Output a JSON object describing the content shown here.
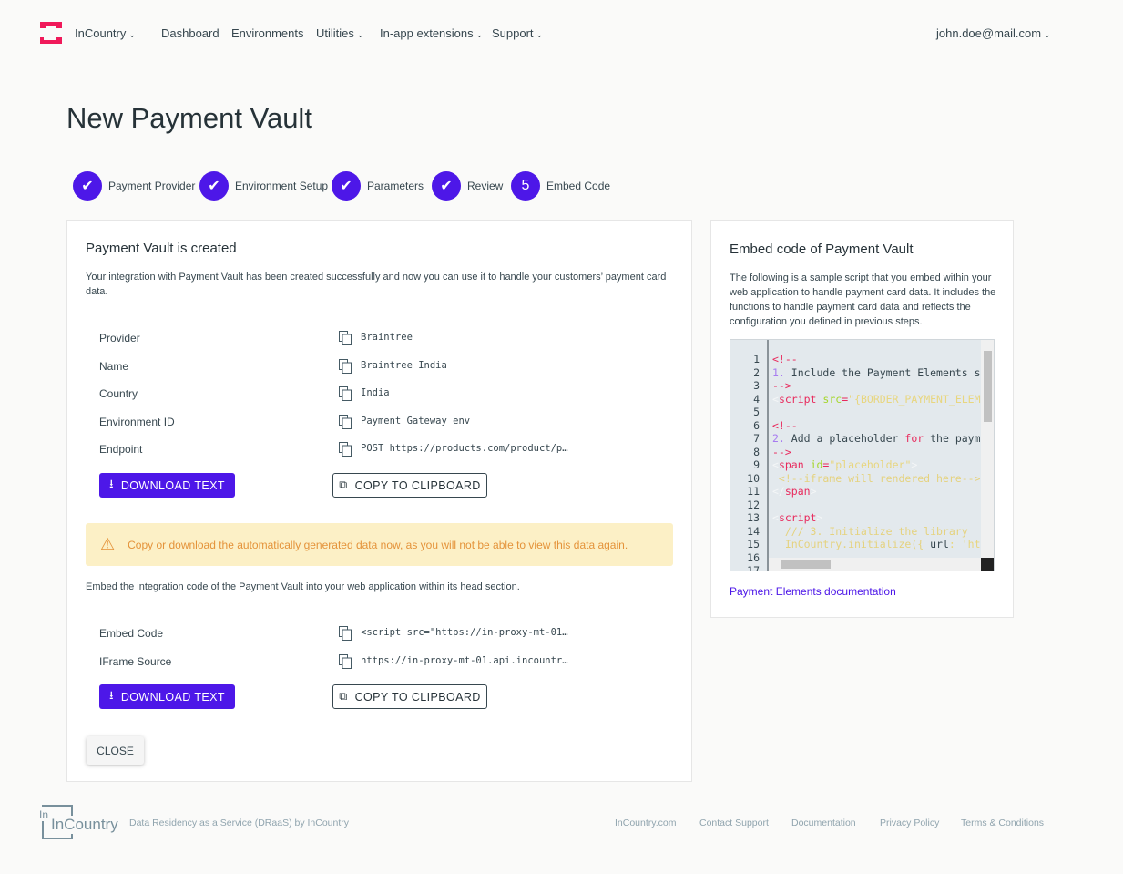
{
  "header": {
    "brand": "InCountry",
    "nav": [
      "Dashboard",
      "Environments",
      "Utilities",
      "In-app extensions",
      "Support"
    ],
    "user": "john.doe@mail.com",
    "brand_color": "#f0195a"
  },
  "page": {
    "title": "New Payment Vault"
  },
  "steps": [
    {
      "label": "Payment Provider",
      "state": "done"
    },
    {
      "label": "Environment Setup",
      "state": "done"
    },
    {
      "label": "Parameters",
      "state": "done"
    },
    {
      "label": "Review",
      "state": "done"
    },
    {
      "label": "Embed Code",
      "state": "current",
      "number": "5"
    }
  ],
  "main": {
    "title": "Payment Vault is created",
    "desc": "Your integration with Payment Vault has been created successfully and now you can use it to handle your customers’ payment card data.",
    "fields": [
      {
        "key": "Provider",
        "value": "Braintree"
      },
      {
        "key": "Name",
        "value": "Braintree India"
      },
      {
        "key": "Country",
        "value": "India"
      },
      {
        "key": "Environment ID",
        "value": "Payment Gateway env"
      },
      {
        "key": "Endpoint",
        "value": "POST https://products.com/product/p…"
      }
    ],
    "download_label": "DOWNLOAD TEXT",
    "copy_label": "COPY TO CLIPBOARD",
    "warning": "Copy or download the automatically generated data now, as you will not be able to view this data again.",
    "embed_desc": "Embed the integration code of the Payment Vault into your web application within its head section.",
    "embed_fields": [
      {
        "key": "Embed Code",
        "value": "<script src=\"https://in-proxy-mt-01…"
      },
      {
        "key": "IFrame Source",
        "value": "https://in-proxy-mt-01.api.incountr…"
      }
    ],
    "close_label": "CLOSE"
  },
  "side": {
    "title": "Embed code of Payment Vault",
    "desc": "The following is a sample script that you embed within your web application to handle payment card data. It includes the functions to handle payment card data and reflects the configuration you defined in previous steps.",
    "link": "Payment Elements documentation",
    "code": [
      [
        [
          "<!--",
          "t-tag"
        ]
      ],
      [
        [
          "1.",
          "t-num"
        ],
        [
          " Include the Payment Elements s",
          ""
        ]
      ],
      [
        [
          "-->",
          "t-tag"
        ]
      ],
      [
        [
          "<",
          "t-br"
        ],
        [
          "script",
          "t-tag"
        ],
        [
          " src",
          "t-attr"
        ],
        [
          "=",
          "t-tag"
        ],
        [
          "\"{BORDER_PAYMENT_ELEM",
          "t-str"
        ]
      ],
      [],
      [
        [
          "<!--",
          "t-tag"
        ]
      ],
      [
        [
          "2.",
          "t-num"
        ],
        [
          " Add a placeholder ",
          ""
        ],
        [
          "for",
          "t-kw"
        ],
        [
          " the paym",
          ""
        ]
      ],
      [
        [
          "-->",
          "t-tag"
        ]
      ],
      [
        [
          "<",
          "t-br"
        ],
        [
          "span",
          "t-tag"
        ],
        [
          " id",
          "t-attr"
        ],
        [
          "=",
          "t-tag"
        ],
        [
          "\"placeholder\"",
          "t-str"
        ],
        [
          ">",
          "t-br"
        ]
      ],
      [
        [
          " <!--iframe will rendered here-->",
          "t-com"
        ]
      ],
      [
        [
          "</",
          "t-br"
        ],
        [
          "span",
          "t-tag"
        ],
        [
          ">",
          "t-br"
        ]
      ],
      [],
      [
        [
          "<",
          "t-br"
        ],
        [
          "script",
          "t-tag"
        ],
        [
          ">",
          "t-br"
        ]
      ],
      [
        [
          "  /// 3. Initialize the library",
          "t-com"
        ]
      ],
      [
        [
          "  InCountry.initialize({ ",
          "t-com"
        ],
        [
          "url",
          ""
        ],
        [
          ": 'ht",
          "t-str"
        ]
      ],
      [],
      []
    ]
  },
  "footer": {
    "logo": "InCountry",
    "tagline": "Data Residency as a Service (DRaaS) by InCountry",
    "links": [
      "InCountry.com",
      "Contact Support",
      "Documentation",
      "Privacy Policy",
      "Terms & Conditions"
    ]
  }
}
